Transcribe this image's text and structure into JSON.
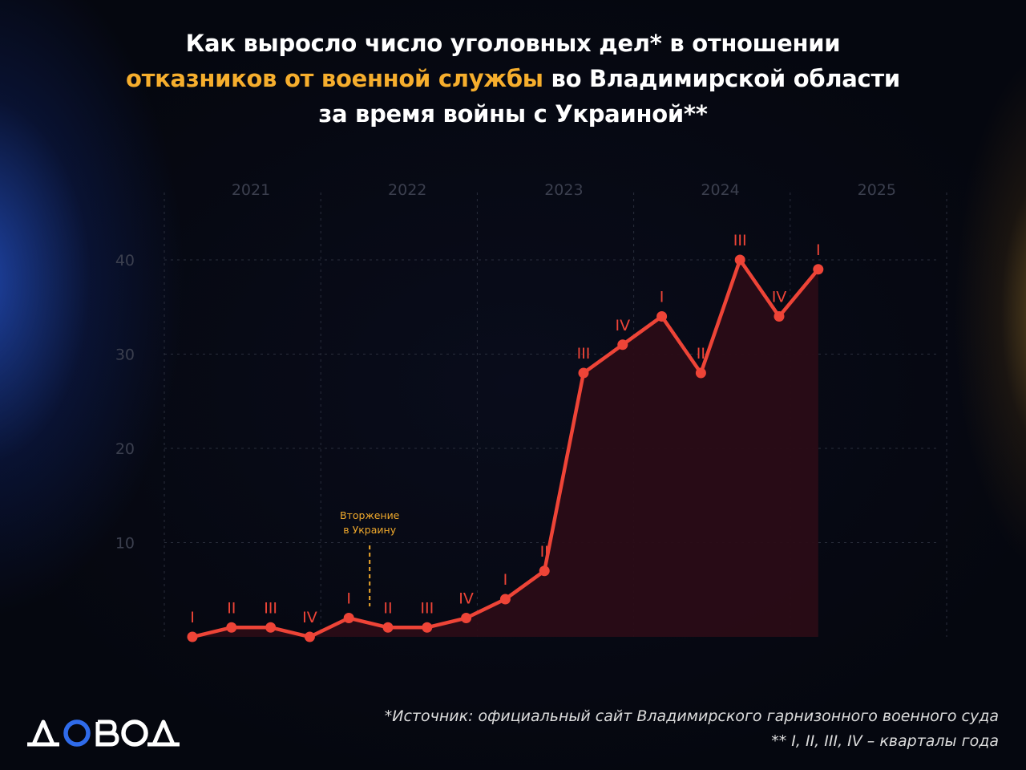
{
  "title": {
    "line1": "Как выросло число уголовных дел* в отношении",
    "line2_highlight": "отказников от военной службы",
    "line2_rest": " во Владимирской области",
    "line3": "за время войны с Украиной**"
  },
  "chart_data": {
    "type": "area",
    "x": [
      "2021-I",
      "2021-II",
      "2021-III",
      "2021-IV",
      "2022-I",
      "2022-II",
      "2022-III",
      "2022-IV",
      "2023-I",
      "2023-II",
      "2023-III",
      "2023-IV",
      "2024-I",
      "2024-II",
      "2024-III",
      "2024-IV",
      "2025-I"
    ],
    "point_labels": [
      "I",
      "II",
      "III",
      "IV",
      "I",
      "II",
      "III",
      "IV",
      "I",
      "II",
      "III",
      "IV",
      "I",
      "II",
      "III",
      "IV",
      "I"
    ],
    "values": [
      0,
      1,
      1,
      0,
      2,
      1,
      1,
      2,
      4,
      7,
      28,
      31,
      34,
      28,
      40,
      34,
      39
    ],
    "year_labels": [
      "2021",
      "2022",
      "2023",
      "2024",
      "2025"
    ],
    "y_ticks": [
      10,
      20,
      30,
      40
    ],
    "ylim": [
      0,
      47
    ],
    "grid": true,
    "annotation": {
      "text_line1": "Вторжение",
      "text_line2": "в Украину",
      "at": "2022-I"
    },
    "colors": {
      "line": "#ee4437",
      "fill": "#2a0c16",
      "annotation": "#f0a92c",
      "grid": "#2a2e3c",
      "labels": "#3b3f4e"
    }
  },
  "footer": {
    "line1": "*Источник: официальный сайт Владимирского гарнизонного военного суда",
    "line2": "** I, II, III, IV – кварталы года"
  },
  "logo": {
    "text": "ДОВОД",
    "accent": "#2f6bea"
  }
}
